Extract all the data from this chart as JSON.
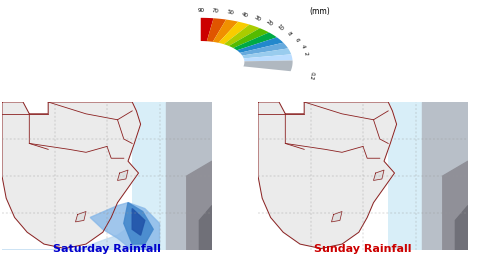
{
  "left_label": "Saturday Rainfall",
  "right_label": "Sunday Rainfall",
  "left_label_color": "#0000cc",
  "right_label_color": "#cc0000",
  "label_fontsize": 8,
  "background_color": "#ffffff",
  "map_bg": "#d8eef8",
  "land_color": "#ebebeb",
  "legend_mm_label": "(mm)",
  "legend_values": [
    "90",
    "70",
    "50",
    "40",
    "30",
    "20",
    "10",
    "8",
    "6",
    "4",
    "2"
  ],
  "legend_colors": [
    "#cc0000",
    "#e05500",
    "#f09000",
    "#f8cc00",
    "#aacc00",
    "#55bb00",
    "#00aa44",
    "#2288cc",
    "#66aadd",
    "#99ccee",
    "#bbddff"
  ],
  "legend_gray_color": "#b0b8c0",
  "fig_width": 5.0,
  "fig_height": 2.64,
  "dpi": 100
}
